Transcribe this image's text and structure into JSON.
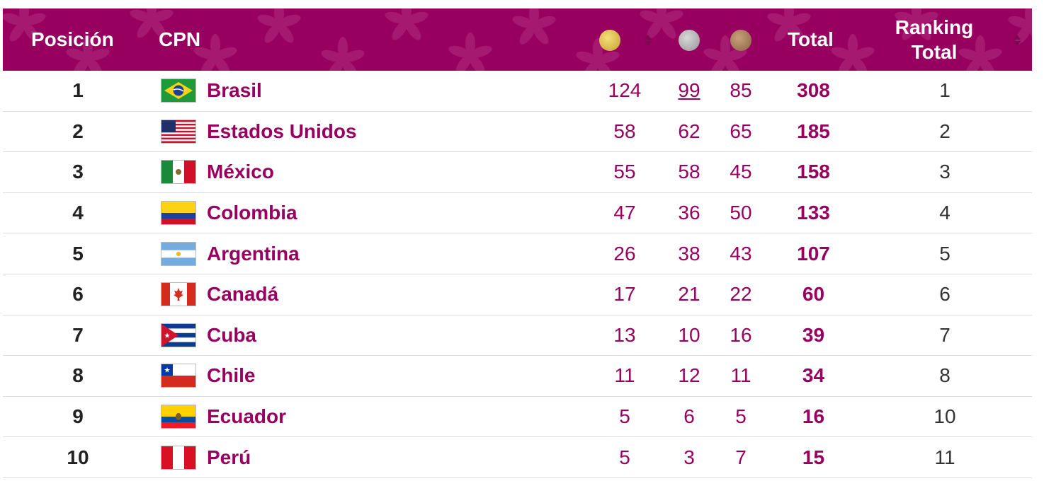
{
  "header": {
    "position_label": "Posición",
    "cpn_label": "CPN",
    "total_label": "Total",
    "ranking_total_label": "Ranking Total"
  },
  "colors": {
    "brand": "#98005f",
    "gold": "#d3b245",
    "silver": "#a9a9a9",
    "bronze": "#9b7653"
  },
  "icons": [
    "gold-medal-icon",
    "silver-medal-icon",
    "bronze-medal-icon",
    "sort-icon"
  ],
  "rows": [
    {
      "position": "1",
      "country": "Brasil",
      "gold": "124",
      "silver": "99",
      "bronze": "85",
      "total": "308",
      "ranking": "1",
      "flag": "brazil-flag-icon"
    },
    {
      "position": "2",
      "country": "Estados Unidos",
      "gold": "58",
      "silver": "62",
      "bronze": "65",
      "total": "185",
      "ranking": "2",
      "flag": "usa-flag-icon"
    },
    {
      "position": "3",
      "country": "México",
      "gold": "55",
      "silver": "58",
      "bronze": "45",
      "total": "158",
      "ranking": "3",
      "flag": "mexico-flag-icon"
    },
    {
      "position": "4",
      "country": "Colombia",
      "gold": "47",
      "silver": "36",
      "bronze": "50",
      "total": "133",
      "ranking": "4",
      "flag": "colombia-flag-icon"
    },
    {
      "position": "5",
      "country": "Argentina",
      "gold": "26",
      "silver": "38",
      "bronze": "43",
      "total": "107",
      "ranking": "5",
      "flag": "argentina-flag-icon"
    },
    {
      "position": "6",
      "country": "Canadá",
      "gold": "17",
      "silver": "21",
      "bronze": "22",
      "total": "60",
      "ranking": "6",
      "flag": "canada-flag-icon"
    },
    {
      "position": "7",
      "country": "Cuba",
      "gold": "13",
      "silver": "10",
      "bronze": "16",
      "total": "39",
      "ranking": "7",
      "flag": "cuba-flag-icon"
    },
    {
      "position": "8",
      "country": "Chile",
      "gold": "11",
      "silver": "12",
      "bronze": "11",
      "total": "34",
      "ranking": "8",
      "flag": "chile-flag-icon"
    },
    {
      "position": "9",
      "country": "Ecuador",
      "gold": "5",
      "silver": "6",
      "bronze": "5",
      "total": "16",
      "ranking": "10",
      "flag": "ecuador-flag-icon"
    },
    {
      "position": "10",
      "country": "Perú",
      "gold": "5",
      "silver": "3",
      "bronze": "7",
      "total": "15",
      "ranking": "11",
      "flag": "peru-flag-icon"
    }
  ]
}
